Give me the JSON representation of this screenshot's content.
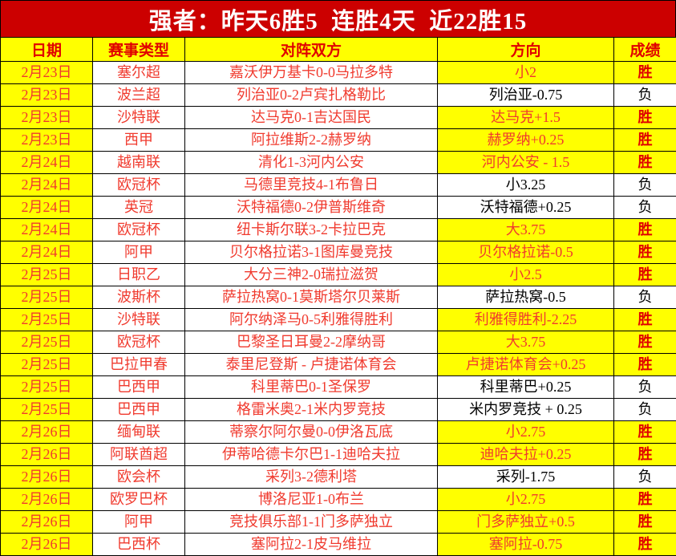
{
  "title": "强者：昨天6胜5  连胜4天  近22胜15",
  "colors": {
    "title_bg": "#cc0000",
    "title_text": "#ffffff",
    "highlight_yellow": "#ffff00",
    "red_text": "#f03a2e",
    "result_win_text": "#e00000",
    "loss_text": "#000000",
    "grid_border": "#000000"
  },
  "table": {
    "headers": [
      "日期",
      "赛事类型",
      "对阵双方",
      "方向",
      "成绩"
    ],
    "rows": [
      {
        "date": "2月23日",
        "league": "塞尔超",
        "match": "嘉沃伊万基卡0-0马拉多特",
        "direction": "小2",
        "result": "胜",
        "win": true
      },
      {
        "date": "2月23日",
        "league": "波兰超",
        "match": "列治亚0-2卢宾扎格勒比",
        "direction": "列治亚-0.75",
        "result": "负",
        "win": false
      },
      {
        "date": "2月23日",
        "league": "沙特联",
        "match": "达马克0-1吉达国民",
        "direction": "达马克+1.5",
        "result": "胜",
        "win": true
      },
      {
        "date": "2月23日",
        "league": "西甲",
        "match": "阿拉维斯2-2赫罗纳",
        "direction": "赫罗纳+0.25",
        "result": "胜",
        "win": true
      },
      {
        "date": "2月24日",
        "league": "越南联",
        "match": "清化1-3河内公安",
        "direction": "河内公安 - 1.5",
        "result": "胜",
        "win": true
      },
      {
        "date": "2月24日",
        "league": "欧冠杯",
        "match": "马德里竞技4-1布鲁日",
        "direction": "小3.25",
        "result": "负",
        "win": false
      },
      {
        "date": "2月24日",
        "league": "英冠",
        "match": "沃特福德0-2伊普斯维奇",
        "direction": "沃特福德+0.25",
        "result": "负",
        "win": false
      },
      {
        "date": "2月24日",
        "league": "欧冠杯",
        "match": "纽卡斯尔联3-2卡拉巴克",
        "direction": "大3.75",
        "result": "胜",
        "win": true
      },
      {
        "date": "2月24日",
        "league": "阿甲",
        "match": "贝尔格拉诺3-1图库曼竞技",
        "direction": "贝尔格拉诺-0.5",
        "result": "胜",
        "win": true
      },
      {
        "date": "2月25日",
        "league": "日职乙",
        "match": "大分三神2-0瑞拉滋贺",
        "direction": "小2.5",
        "result": "胜",
        "win": true
      },
      {
        "date": "2月25日",
        "league": "波斯杯",
        "match": "萨拉热窝0-1莫斯塔尔贝莱斯",
        "direction": "萨拉热窝-0.5",
        "result": "负",
        "win": false
      },
      {
        "date": "2月25日",
        "league": "沙特联",
        "match": "阿尔纳泽马0-5利雅得胜利",
        "direction": "利雅得胜利-2.25",
        "result": "胜",
        "win": true
      },
      {
        "date": "2月25日",
        "league": "欧冠杯",
        "match": "巴黎圣日耳曼2-2摩纳哥",
        "direction": "大3.75",
        "result": "胜",
        "win": true
      },
      {
        "date": "2月25日",
        "league": "巴拉甲春",
        "match": "泰里尼登斯 - 卢捷诺体育会",
        "direction": "卢捷诺体育会+0.25",
        "result": "胜",
        "win": true
      },
      {
        "date": "2月25日",
        "league": "巴西甲",
        "match": "科里蒂巴0-1圣保罗",
        "direction": "科里蒂巴+0.25",
        "result": "负",
        "win": false
      },
      {
        "date": "2月25日",
        "league": "巴西甲",
        "match": "格雷米奥2-1米内罗竞技",
        "direction": "米内罗竞技 + 0.25",
        "result": "负",
        "win": false
      },
      {
        "date": "2月26日",
        "league": "缅甸联",
        "match": "蒂察尔阿尔曼0-0伊洛瓦底",
        "direction": "小2.75",
        "result": "胜",
        "win": true
      },
      {
        "date": "2月26日",
        "league": "阿联酋超",
        "match": "伊蒂哈德卡尔巴1-1迪哈夫拉",
        "direction": "迪哈夫拉+0.25",
        "result": "胜",
        "win": true
      },
      {
        "date": "2月26日",
        "league": "欧会杯",
        "match": "采列3-2德利塔",
        "direction": "采列-1.75",
        "result": "负",
        "win": false
      },
      {
        "date": "2月26日",
        "league": "欧罗巴杯",
        "match": "博洛尼亚1-0布兰",
        "direction": "小2.75",
        "result": "胜",
        "win": true
      },
      {
        "date": "2月26日",
        "league": "阿甲",
        "match": "竞技俱乐部1-1门多萨独立",
        "direction": "门多萨独立+0.5",
        "result": "胜",
        "win": true
      },
      {
        "date": "2月26日",
        "league": "巴西杯",
        "match": "塞阿拉2-1皮马维拉",
        "direction": "塞阿拉-0.75",
        "result": "胜",
        "win": true
      }
    ]
  }
}
